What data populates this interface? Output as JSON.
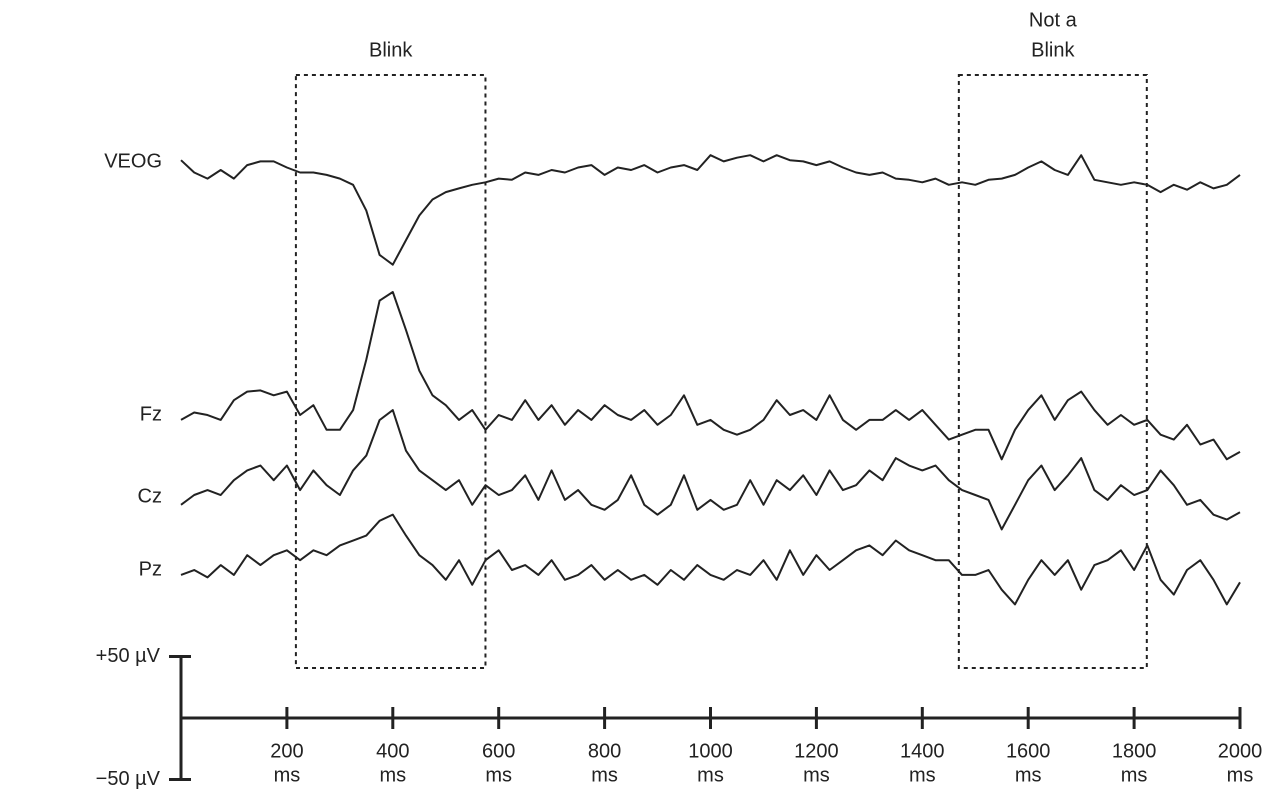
{
  "chart_data": {
    "type": "line",
    "x": [
      0,
      25,
      50,
      75,
      100,
      125,
      150,
      175,
      200,
      225,
      250,
      275,
      300,
      325,
      350,
      375,
      400,
      425,
      450,
      475,
      500,
      525,
      550,
      575,
      600,
      625,
      650,
      675,
      700,
      725,
      750,
      775,
      800,
      825,
      850,
      875,
      900,
      925,
      950,
      975,
      1000,
      1025,
      1050,
      1075,
      1100,
      1125,
      1150,
      1175,
      1200,
      1225,
      1250,
      1275,
      1300,
      1325,
      1350,
      1375,
      1400,
      1425,
      1450,
      1475,
      1500,
      1525,
      1550,
      1575,
      1600,
      1625,
      1650,
      1675,
      1700,
      1725,
      1750,
      1775,
      1800,
      1825,
      1850,
      1875,
      1900,
      1925,
      1950,
      1975,
      2000
    ],
    "series": [
      {
        "name": "VEOG",
        "color": "#222222",
        "values": [
          8,
          -2,
          -7,
          0,
          -7,
          4,
          7,
          7,
          2,
          -2,
          -2,
          -4,
          -7,
          -12,
          -33,
          -69,
          -77,
          -57,
          -37,
          -24,
          -18,
          -15,
          -12,
          -10,
          -7,
          -8,
          -2,
          -4,
          0,
          -2,
          2,
          4,
          -4,
          2,
          0,
          4,
          -2,
          2,
          4,
          0,
          12,
          7,
          10,
          12,
          7,
          12,
          8,
          7,
          4,
          7,
          2,
          -2,
          -4,
          -2,
          -7,
          -8,
          -10,
          -7,
          -12,
          -10,
          -12,
          -8,
          -7,
          -4,
          2,
          7,
          0,
          -4,
          12,
          -8,
          -10,
          -12,
          -10,
          -12,
          -18,
          -12,
          -16,
          -10,
          -15,
          -12,
          -4
        ]
      },
      {
        "name": "Fz",
        "color": "#222222",
        "values": [
          -4,
          2,
          0,
          -4,
          12,
          19,
          20,
          16,
          19,
          0,
          8,
          -12,
          -12,
          4,
          45,
          93,
          100,
          69,
          36,
          16,
          8,
          -4,
          4,
          -12,
          0,
          -4,
          12,
          -4,
          8,
          -8,
          4,
          -4,
          8,
          0,
          -4,
          4,
          -8,
          0,
          16,
          -8,
          -4,
          -12,
          -16,
          -12,
          -4,
          12,
          0,
          4,
          -4,
          16,
          -4,
          -12,
          -4,
          -4,
          4,
          -4,
          4,
          -8,
          -20,
          -16,
          -12,
          -12,
          -36,
          -12,
          4,
          16,
          -4,
          12,
          19,
          4,
          -8,
          0,
          -8,
          -4,
          -16,
          -20,
          -8,
          -24,
          -20,
          -36,
          -30
        ]
      },
      {
        "name": "Cz",
        "color": "#222222",
        "values": [
          -8,
          0,
          4,
          0,
          12,
          20,
          24,
          12,
          24,
          4,
          20,
          8,
          0,
          20,
          32,
          61,
          69,
          36,
          20,
          12,
          4,
          12,
          -8,
          8,
          0,
          4,
          16,
          -4,
          20,
          -4,
          4,
          -8,
          -12,
          -4,
          16,
          -8,
          -16,
          -8,
          16,
          -12,
          -4,
          -12,
          -8,
          12,
          -8,
          12,
          4,
          16,
          0,
          20,
          4,
          8,
          20,
          12,
          30,
          24,
          20,
          24,
          12,
          4,
          0,
          -4,
          -28,
          -8,
          12,
          24,
          4,
          16,
          30,
          4,
          -4,
          8,
          0,
          4,
          20,
          8,
          -8,
          -4,
          -16,
          -20,
          -14
        ]
      },
      {
        "name": "Pz",
        "color": "#222222",
        "values": [
          -4,
          0,
          -6,
          4,
          -4,
          12,
          4,
          12,
          16,
          8,
          16,
          12,
          20,
          24,
          28,
          40,
          45,
          28,
          12,
          4,
          -8,
          8,
          -12,
          8,
          16,
          0,
          4,
          -4,
          8,
          -8,
          -4,
          4,
          -8,
          0,
          -8,
          -4,
          -12,
          0,
          -8,
          4,
          -4,
          -8,
          0,
          -4,
          8,
          -8,
          16,
          -4,
          12,
          0,
          8,
          16,
          20,
          12,
          24,
          16,
          12,
          8,
          8,
          -4,
          -4,
          0,
          -16,
          -28,
          -8,
          8,
          -4,
          8,
          -16,
          4,
          8,
          16,
          0,
          20,
          -8,
          -20,
          0,
          8,
          -8,
          -28,
          -10
        ]
      }
    ],
    "xlim": [
      0,
      2000
    ],
    "xticks": [
      200,
      400,
      600,
      800,
      1000,
      1200,
      1400,
      1600,
      1800,
      2000
    ],
    "xtick_unit": "ms",
    "scale_bar": {
      "top": {
        "value": 50,
        "label": "+50 µV"
      },
      "bottom": {
        "value": -50,
        "label": "−50 µV"
      }
    },
    "annotations": [
      {
        "label": [
          "Blink"
        ],
        "x0": 217,
        "x1": 575
      },
      {
        "label": [
          "Not a",
          "Blink"
        ],
        "x0": 1469,
        "x1": 1824
      }
    ]
  }
}
